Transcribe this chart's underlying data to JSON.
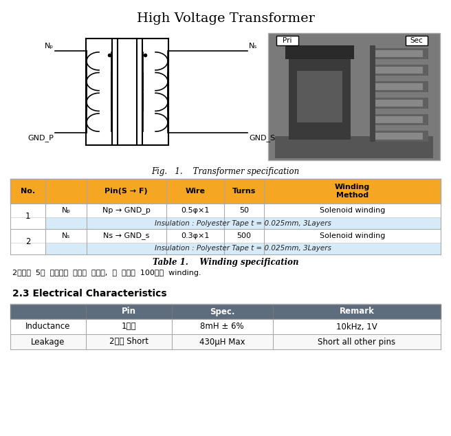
{
  "title": "High Voltage Transformer",
  "fig_caption": "Fig.   1.    Transformer specification",
  "table1_caption": "Table 1.    Winding specification",
  "korean_note": "2차측의  5개  섹션으로  나눠져  있으며,  각  섹션에  100턴씩  winding.",
  "section_heading": "2.3 Electrical Characteristics",
  "table1_header_color": "#F5A623",
  "table1_insulation_color": "#D6EAF8",
  "table2_header_color": "#5D6D7E",
  "orange_color": "#F5A623",
  "light_blue_color": "#D6EAF8",
  "dark_header_color": "#5D6D7E",
  "winding_table": {
    "headers": [
      "No.",
      "",
      "Pin(S → F)",
      "Wire",
      "Turns",
      "Winding\nMethod"
    ],
    "row1_main": [
      "1",
      "Nₚ",
      "Np → GND_p",
      "0.5φ×1",
      "50",
      "Solenoid winding"
    ],
    "row1_insulation": "Insulation : Polyester Tape t = 0.025mm, 3Layers",
    "row2_main": [
      "2",
      "Nₛ",
      "Ns → GND_s",
      "0.3φ×1",
      "500",
      "Solenoid winding"
    ],
    "row2_insulation": "Insulation : Polyester Tape t = 0.025mm, 3Layers"
  },
  "elec_table": {
    "headers": [
      "",
      "Pin",
      "Spec.",
      "Remark"
    ],
    "row1": [
      "Inductance",
      "1차측",
      "8mH ± 6%",
      "10kHz, 1V"
    ],
    "row2": [
      "Leakage",
      "2차측 Short",
      "430μH Max",
      "Short all other pins"
    ]
  }
}
